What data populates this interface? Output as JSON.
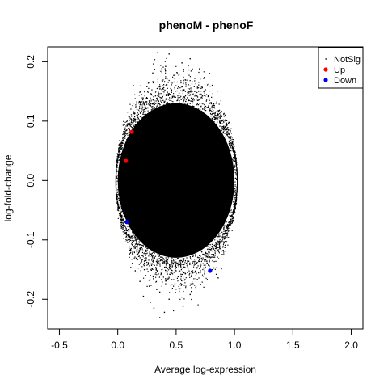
{
  "chart_data": {
    "type": "scatter",
    "title": "phenoM - phenoF",
    "xlabel": "Average log-expression",
    "ylabel": "log-fold-change",
    "xlim": [
      -0.6,
      2.1
    ],
    "ylim": [
      -0.25,
      0.225
    ],
    "x_ticks": [
      -0.5,
      0.0,
      0.5,
      1.0,
      1.5,
      2.0
    ],
    "x_tick_labels": [
      "-0.5",
      "0.0",
      "0.5",
      "1.0",
      "1.5",
      "2.0"
    ],
    "y_ticks": [
      -0.2,
      -0.1,
      0.0,
      0.1,
      0.2
    ],
    "y_tick_labels": [
      "-0.2",
      "-0.1",
      "0.0",
      "0.1",
      "0.2"
    ],
    "grid": false,
    "legend_position": "top-right",
    "series": [
      {
        "name": "NotSig",
        "color": "#000000",
        "marker": "small-dot",
        "cloud": {
          "x_center": 0.5,
          "x_halfwidth": 0.5,
          "y_center": 0.0,
          "y_halfwidth": 0.13,
          "approx_points": 60000
        },
        "outliers": [
          {
            "x": 0.34,
            "y": 0.215
          },
          {
            "x": 0.44,
            "y": 0.213
          },
          {
            "x": 0.62,
            "y": 0.205
          },
          {
            "x": 0.55,
            "y": 0.198
          },
          {
            "x": 0.41,
            "y": 0.192
          },
          {
            "x": 0.7,
            "y": 0.188
          },
          {
            "x": 0.3,
            "y": 0.181
          },
          {
            "x": 0.48,
            "y": 0.177
          },
          {
            "x": 0.66,
            "y": 0.172
          },
          {
            "x": 0.38,
            "y": 0.168
          },
          {
            "x": 0.78,
            "y": 0.162
          },
          {
            "x": 0.25,
            "y": 0.158
          },
          {
            "x": 0.36,
            "y": -0.231
          },
          {
            "x": 0.4,
            "y": -0.222
          },
          {
            "x": 0.31,
            "y": -0.215
          },
          {
            "x": 0.56,
            "y": -0.212
          },
          {
            "x": 0.28,
            "y": -0.205
          },
          {
            "x": 0.44,
            "y": -0.2
          },
          {
            "x": 0.22,
            "y": -0.195
          },
          {
            "x": 0.62,
            "y": -0.192
          },
          {
            "x": 0.36,
            "y": -0.188
          },
          {
            "x": 0.5,
            "y": -0.183
          },
          {
            "x": 0.27,
            "y": -0.178
          },
          {
            "x": 0.71,
            "y": -0.175
          },
          {
            "x": 0.19,
            "y": -0.17
          },
          {
            "x": 0.42,
            "y": -0.166
          },
          {
            "x": 0.86,
            "y": -0.164
          },
          {
            "x": 0.24,
            "y": -0.16
          },
          {
            "x": 0.58,
            "y": -0.157
          },
          {
            "x": 0.15,
            "y": -0.152
          },
          {
            "x": 0.33,
            "y": -0.149
          },
          {
            "x": 0.75,
            "y": -0.146
          }
        ]
      },
      {
        "name": "Up",
        "color": "#ff0000",
        "marker": "filled-circle",
        "points": [
          {
            "x": 0.12,
            "y": 0.082
          },
          {
            "x": 0.07,
            "y": 0.033
          }
        ]
      },
      {
        "name": "Down",
        "color": "#0000ff",
        "marker": "filled-circle",
        "points": [
          {
            "x": 0.08,
            "y": -0.07
          },
          {
            "x": 0.79,
            "y": -0.152
          }
        ]
      }
    ]
  }
}
